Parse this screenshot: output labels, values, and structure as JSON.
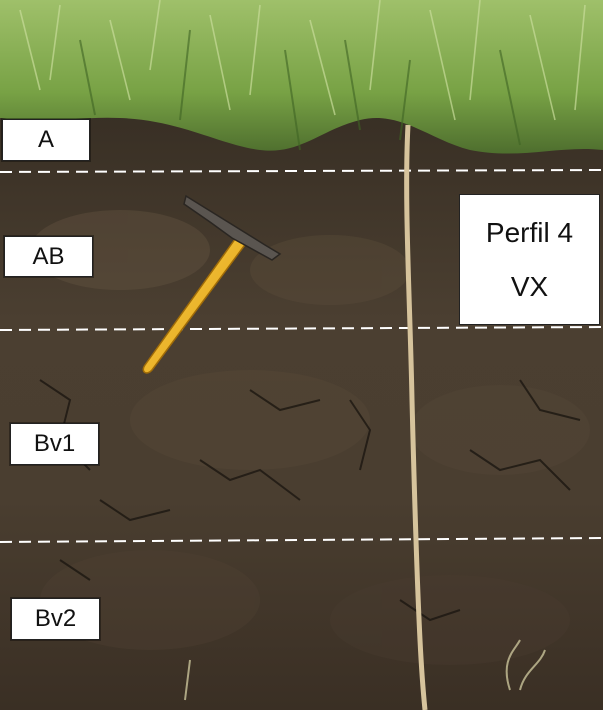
{
  "horizons": [
    {
      "label": "A"
    },
    {
      "label": "AB"
    },
    {
      "label": "Bv1"
    },
    {
      "label": "Bv2"
    }
  ],
  "profile": {
    "line1": "Perfil 4",
    "line2": "VX"
  },
  "scene": {
    "subject": "soil-profile",
    "objects": [
      "grass",
      "geological-hammer",
      "measuring-tape",
      "horizon-boundary-lines"
    ],
    "colors": {
      "grass": "#7fa84a",
      "soil_dark": "#2f261d",
      "soil_mid": "#5a4a38",
      "hammer_handle": "#f0b020",
      "tape": "#d9c7a0",
      "boundary_line": "#ffffff"
    }
  }
}
